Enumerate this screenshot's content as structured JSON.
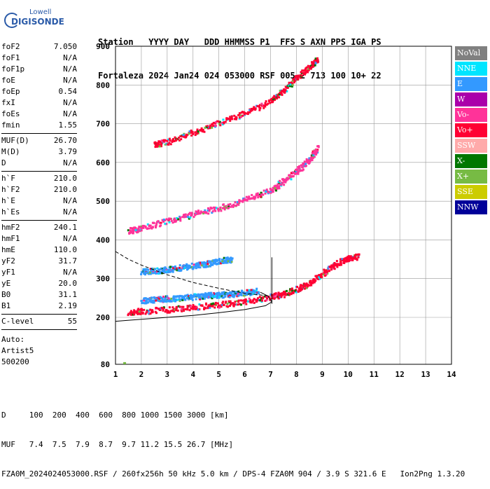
{
  "logo": {
    "brand_top": "Lowell",
    "brand_main": "DIGISONDE"
  },
  "header": {
    "row1": "Station   YYYY DAY   DDD HHMMSS P1  FFS S AXN PPS IGA PS",
    "row2": "Fortaleza 2024 Jan24 024 053000 RSF 005 2 713 100 10+ 22"
  },
  "params": {
    "group1": [
      {
        "k": "foF2",
        "v": "7.050"
      },
      {
        "k": "foF1",
        "v": "N/A"
      },
      {
        "k": "foF1p",
        "v": "N/A"
      },
      {
        "k": "foE",
        "v": "N/A"
      },
      {
        "k": "foEp",
        "v": "0.54"
      },
      {
        "k": "fxI",
        "v": "N/A"
      },
      {
        "k": "foEs",
        "v": "N/A"
      },
      {
        "k": "fmin",
        "v": "1.55"
      }
    ],
    "group2": [
      {
        "k": "MUF(D)",
        "v": "26.70"
      },
      {
        "k": "M(D)",
        "v": "3.79"
      },
      {
        "k": "D",
        "v": "N/A"
      }
    ],
    "group3": [
      {
        "k": "h`F",
        "v": "210.0"
      },
      {
        "k": "h`F2",
        "v": "210.0"
      },
      {
        "k": "h`E",
        "v": "N/A"
      },
      {
        "k": "h`Es",
        "v": "N/A"
      }
    ],
    "group4": [
      {
        "k": "hmF2",
        "v": "240.1"
      },
      {
        "k": "hmF1",
        "v": "N/A"
      },
      {
        "k": "hmE",
        "v": "110.0"
      },
      {
        "k": "yF2",
        "v": "31.7"
      },
      {
        "k": "yF1",
        "v": "N/A"
      },
      {
        "k": "yE",
        "v": "20.0"
      },
      {
        "k": "B0",
        "v": "31.1"
      },
      {
        "k": "B1",
        "v": "2.19"
      }
    ],
    "clevel": {
      "k": "C-level",
      "v": "55"
    },
    "auto_lines": [
      "Auto:",
      "Artist5",
      "500200"
    ]
  },
  "legend": [
    {
      "label": "NoVal",
      "color": "#808080"
    },
    {
      "label": "NNE",
      "color": "#00e5ff"
    },
    {
      "label": "E",
      "color": "#3399ff"
    },
    {
      "label": "W",
      "color": "#aa00aa"
    },
    {
      "label": "Vo-",
      "color": "#ff3399"
    },
    {
      "label": "Vo+",
      "color": "#ff0033"
    },
    {
      "label": "SSW",
      "color": "#ffaaaa"
    },
    {
      "label": "X-",
      "color": "#007700"
    },
    {
      "label": "X+",
      "color": "#77bb44"
    },
    {
      "label": "SSE",
      "color": "#cccc00"
    },
    {
      "label": "NNW",
      "color": "#000099"
    }
  ],
  "footer": {
    "line1": "D     100  200  400  600  800 1000 1500 3000 [km]",
    "line2": "MUF   7.4  7.5  7.9  8.7  9.7 11.2 15.5 26.7 [MHz]",
    "line3": "FZA0M_2024024053000.RSF / 260fx256h 50 kHz 5.0 km / DPS-4 FZA0M 904 / 3.9 S 321.6 E   Ion2Png 1.3.20"
  },
  "chart_data": {
    "type": "scatter",
    "x_ticks": [
      "1",
      "2",
      "3",
      "4",
      "5",
      "6",
      "7",
      "8",
      "9",
      "10",
      "11",
      "12",
      "13",
      "14"
    ],
    "y_ticks": [
      "80",
      "200",
      "300",
      "400",
      "500",
      "600",
      "700",
      "800",
      "900"
    ],
    "xlim": [
      1,
      14
    ],
    "ylim": [
      80,
      900
    ],
    "y_scale": "non-linear (80 at bottom, 200..900 evenly spaced)",
    "grid": true,
    "traces": [
      {
        "name": "",
        "color": "#ff0033",
        "x": [
          1.5,
          2.0,
          3.0,
          4.0,
          5.0,
          6.0,
          7.0,
          7.5,
          8.0,
          8.5,
          9.0,
          9.5,
          10.0,
          10.4
        ],
        "y": [
          215,
          218,
          222,
          228,
          235,
          242,
          255,
          262,
          275,
          290,
          315,
          340,
          355,
          360
        ]
      },
      {
        "name": "",
        "color": "#ff3399",
        "x": [
          1.5,
          2.0,
          3.0,
          4.0,
          5.0,
          6.0,
          7.0,
          7.5,
          8.0,
          8.5,
          8.8
        ],
        "y": [
          425,
          432,
          452,
          468,
          485,
          505,
          530,
          555,
          580,
          610,
          640
        ]
      },
      {
        "name": "",
        "color": "#ff0033",
        "x": [
          2.5,
          3.0,
          4.0,
          5.0,
          6.0,
          7.0,
          7.5,
          8.0,
          8.5,
          8.8
        ],
        "y": [
          648,
          655,
          680,
          705,
          730,
          760,
          790,
          820,
          850,
          870
        ]
      },
      {
        "name": "",
        "color": "#3399ff",
        "x": [
          2.0,
          2.5,
          3.0,
          3.5,
          4.0,
          4.5,
          5.0,
          5.5
        ],
        "y": [
          320,
          322,
          325,
          330,
          335,
          340,
          348,
          352
        ]
      },
      {
        "name": "",
        "color": "#3399ff",
        "x": [
          2.0,
          2.5,
          3.0,
          3.5,
          4.0,
          4.5,
          5.0,
          5.5,
          6.0,
          6.5
        ],
        "y": [
          245,
          248,
          250,
          252,
          255,
          258,
          260,
          262,
          265,
          270
        ]
      }
    ],
    "profile_curve": {
      "x": [
        1.0,
        2.0,
        3.0,
        4.0,
        5.0,
        6.0,
        6.8,
        7.05,
        6.9,
        6.6
      ],
      "y": [
        190,
        195,
        200,
        205,
        212,
        220,
        230,
        240,
        255,
        265
      ]
    },
    "dashed_curve": {
      "x": [
        1.0,
        1.5,
        2.0,
        3.0,
        4.0,
        5.0,
        6.0,
        7.0
      ],
      "y": [
        370,
        350,
        335,
        310,
        290,
        275,
        262,
        255
      ]
    }
  }
}
